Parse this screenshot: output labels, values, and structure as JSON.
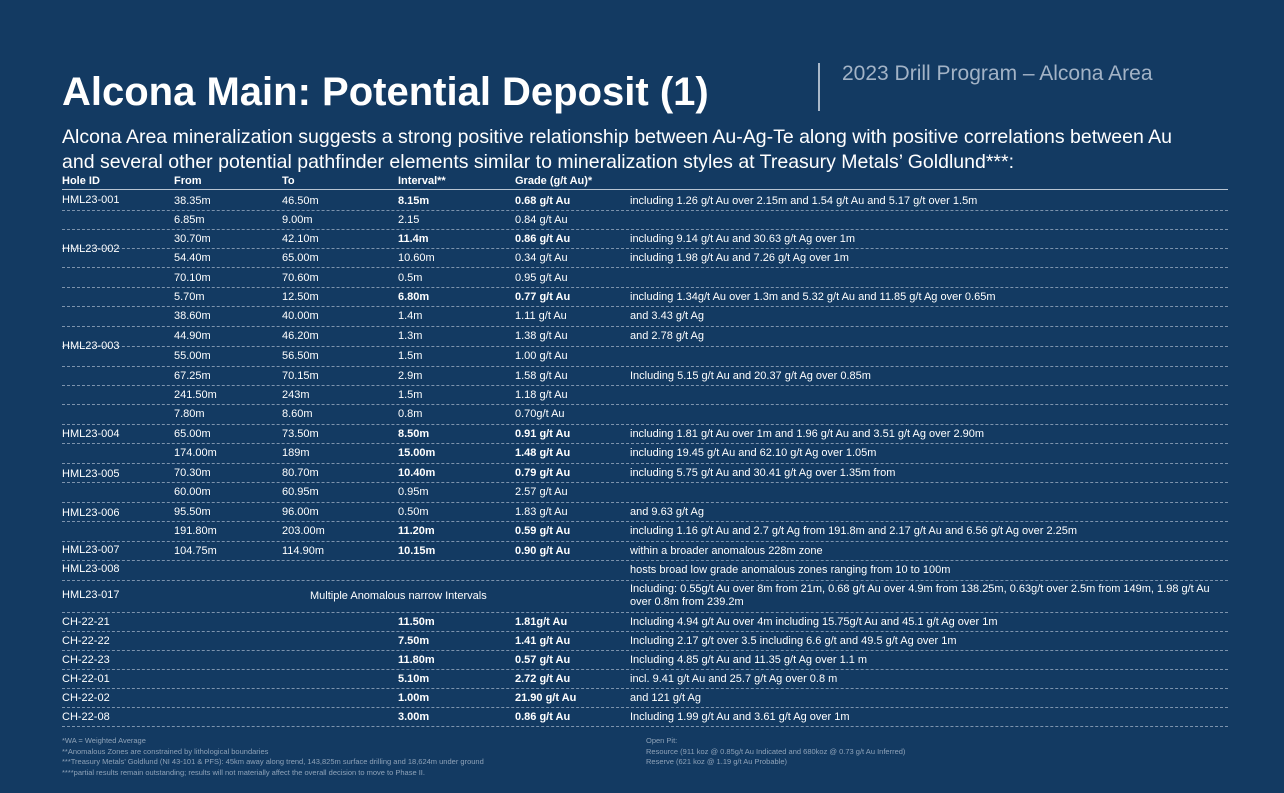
{
  "title": "Alcona Main: Potential Deposit (1)",
  "subtitle_right": "2023 Drill Program – Alcona Area",
  "intro_line1": "Alcona Area mineralization suggests a strong positive relationship between Au-Ag-Te along with positive correlations between Au",
  "intro_line2": "and several other potential pathfinder elements similar to mineralization styles at Treasury Metals’ Goldlund***:",
  "columns": [
    "Hole ID",
    "From",
    "To",
    "Interval**",
    "Grade (g/t Au)*"
  ],
  "holes": [
    "HML23-001",
    "HML23-002",
    "HML23-003",
    "HML23-004",
    "HML23-005",
    "HML23-006",
    "HML23-007",
    "HML23-008",
    "HML23-017",
    "CH-22-21",
    "CH-22-22",
    "CH-22-23",
    "CH-22-01",
    "CH-22-02",
    "CH-22-08"
  ],
  "rows": [
    {
      "from": "38.35m",
      "to": "46.50m",
      "interval": "8.15m",
      "grade": "0.68 g/t Au",
      "note": "including 1.26 g/t Au over 2.15m and 1.54 g/t Au and 5.17 g/t over 1.5m"
    },
    {
      "from": "6.85m",
      "to": "9.00m",
      "interval": "2.15",
      "grade": "0.84 g/t Au",
      "note": ""
    },
    {
      "from": "30.70m",
      "to": "42.10m",
      "interval": "11.4m",
      "grade": "0.86 g/t Au",
      "note": "including 9.14 g/t Au and 30.63 g/t Ag over 1m"
    },
    {
      "from": "54.40m",
      "to": "65.00m",
      "interval": "10.60m",
      "grade": "0.34 g/t Au",
      "note": "including 1.98 g/t Au and 7.26 g/t Ag over 1m"
    },
    {
      "from": "70.10m",
      "to": "70.60m",
      "interval": "0.5m",
      "grade": "0.95 g/t Au",
      "note": ""
    },
    {
      "from": "5.70m",
      "to": "12.50m",
      "interval": "6.80m",
      "grade": "0.77 g/t Au",
      "note": "including 1.34g/t Au over 1.3m and 5.32 g/t Au and 11.85 g/t Ag over 0.65m"
    },
    {
      "from": "38.60m",
      "to": "40.00m",
      "interval": "1.4m",
      "grade": "1.11 g/t Au",
      "note": " and 3.43 g/t Ag"
    },
    {
      "from": "44.90m",
      "to": "46.20m",
      "interval": "1.3m",
      "grade": "1.38 g/t Au",
      "note": " and 2.78 g/t Ag"
    },
    {
      "from": "55.00m",
      "to": "56.50m",
      "interval": "1.5m",
      "grade": "1.00 g/t Au",
      "note": ""
    },
    {
      "from": "67.25m",
      "to": "70.15m",
      "interval": "2.9m",
      "grade": "1.58 g/t Au",
      "note": " Including 5.15 g/t Au and 20.37 g/t Ag  over 0.85m"
    },
    {
      "from": "241.50m",
      "to": "243m",
      "interval": "1.5m",
      "grade": "1.18 g/t Au",
      "note": ""
    },
    {
      "from": "7.80m",
      "to": "8.60m",
      "interval": "0.8m",
      "grade": " 0.70g/t Au",
      "note": ""
    },
    {
      "from": "65.00m",
      "to": "73.50m",
      "interval": "8.50m",
      "grade": "0.91 g/t Au",
      "note": "including 1.81 g/t Au over 1m and 1.96 g/t Au and 3.51 g/t Ag over 2.90m"
    },
    {
      "from": "174.00m",
      "to": "189m",
      "interval": "15.00m",
      "grade": "1.48 g/t Au",
      "note": "including 19.45 g/t Au and 62.10 g/t Ag over 1.05m"
    },
    {
      "from": "70.30m",
      "to": "80.70m",
      "interval": "10.40m",
      "grade": "0.79 g/t Au",
      "note": "including 5.75 g/t Au and 30.41 g/t Ag over 1.35m from"
    },
    {
      "from": "60.00m",
      "to": "60.95m",
      "interval": "0.95m",
      "grade": "2.57 g/t Au",
      "note": ""
    },
    {
      "from": "95.50m",
      "to": "96.00m",
      "interval": "0.50m",
      "grade": "1.83 g/t Au",
      "note": " and 9.63 g/t Ag"
    },
    {
      "from": "191.80m",
      "to": "203.00m",
      "interval": "11.20m",
      "grade": "0.59 g/t Au",
      "note": "including 1.16 g/t Au and 2.7 g/t Ag from 191.8m and 2.17 g/t Au and 6.56 g/t Ag over 2.25m"
    },
    {
      "from": "104.75m",
      "to": "114.90m",
      "interval": "10.15m",
      "grade": "0.90 g/t Au",
      "note": "within a broader anomalous 228m zone"
    },
    {
      "from": "",
      "to": "",
      "interval": "",
      "grade": "",
      "note": "hosts broad low grade anomalous zones ranging from 10 to 100m"
    },
    {
      "from": "",
      "to": "",
      "interval": "",
      "grade": "",
      "note": "Including: 0.55g/t Au over 8m from 21m, 0.68 g/t Au over 4.9m from 138.25m, 0.63g/t over 2.5m from 149m, 1.98 g/t Au over 0.8m from 239.2m"
    },
    {
      "from": "",
      "to": "",
      "interval": "11.50m",
      "grade": "1.81g/t Au",
      "note": "Including 4.94 g/t Au over 4m including 15.75g/t Au and 45.1 g/t Ag over 1m"
    },
    {
      "from": "",
      "to": "",
      "interval": "7.50m",
      "grade": "1.41 g/t Au",
      "note": "Including 2.17 g/t over 3.5 including 6.6 g/t and 49.5 g/t Ag over 1m"
    },
    {
      "from": "",
      "to": "",
      "interval": "11.80m",
      "grade": "0.57 g/t Au",
      "note": "Including 4.85 g/t Au and 11.35 g/t Ag over 1.1 m"
    },
    {
      "from": "",
      "to": "",
      "interval": "5.10m",
      "grade": "2.72 g/t Au",
      "note": "incl. 9.41 g/t Au and 25.7 g/t Ag over 0.8 m"
    },
    {
      "from": "",
      "to": "",
      "interval": "1.00m",
      "grade": "21.90 g/t Au",
      "note": "and 121 g/t Ag"
    },
    {
      "from": "",
      "to": "",
      "interval": "3.00m",
      "grade": "0.86 g/t Au",
      "note": "Including 1.99 g/t Au and 3.61 g/t Ag over 1m"
    }
  ],
  "merged_note": "Multiple Anomalous narrow Intervals",
  "footnotes_left": [
    "*WA = Weighted Average",
    "**Anomalous Zones are constrained by lithological boundaries",
    "***Treasury Metals’ Goldlund (NI 43-101 & PFS): 45km away along trend, 143,825m surface drilling and 18,624m under ground",
    "****partial results remain outstanding; results will not materially affect the overall decision to move to Phase II."
  ],
  "footnotes_right": [
    "Open Pit:",
    "Resource (911 koz @ 0.85g/t Au Indicated and 680koz @ 0.73 g/t Au Inferred)",
    "Reserve (621 koz @ 1.19 g/t Au Probable)"
  ]
}
